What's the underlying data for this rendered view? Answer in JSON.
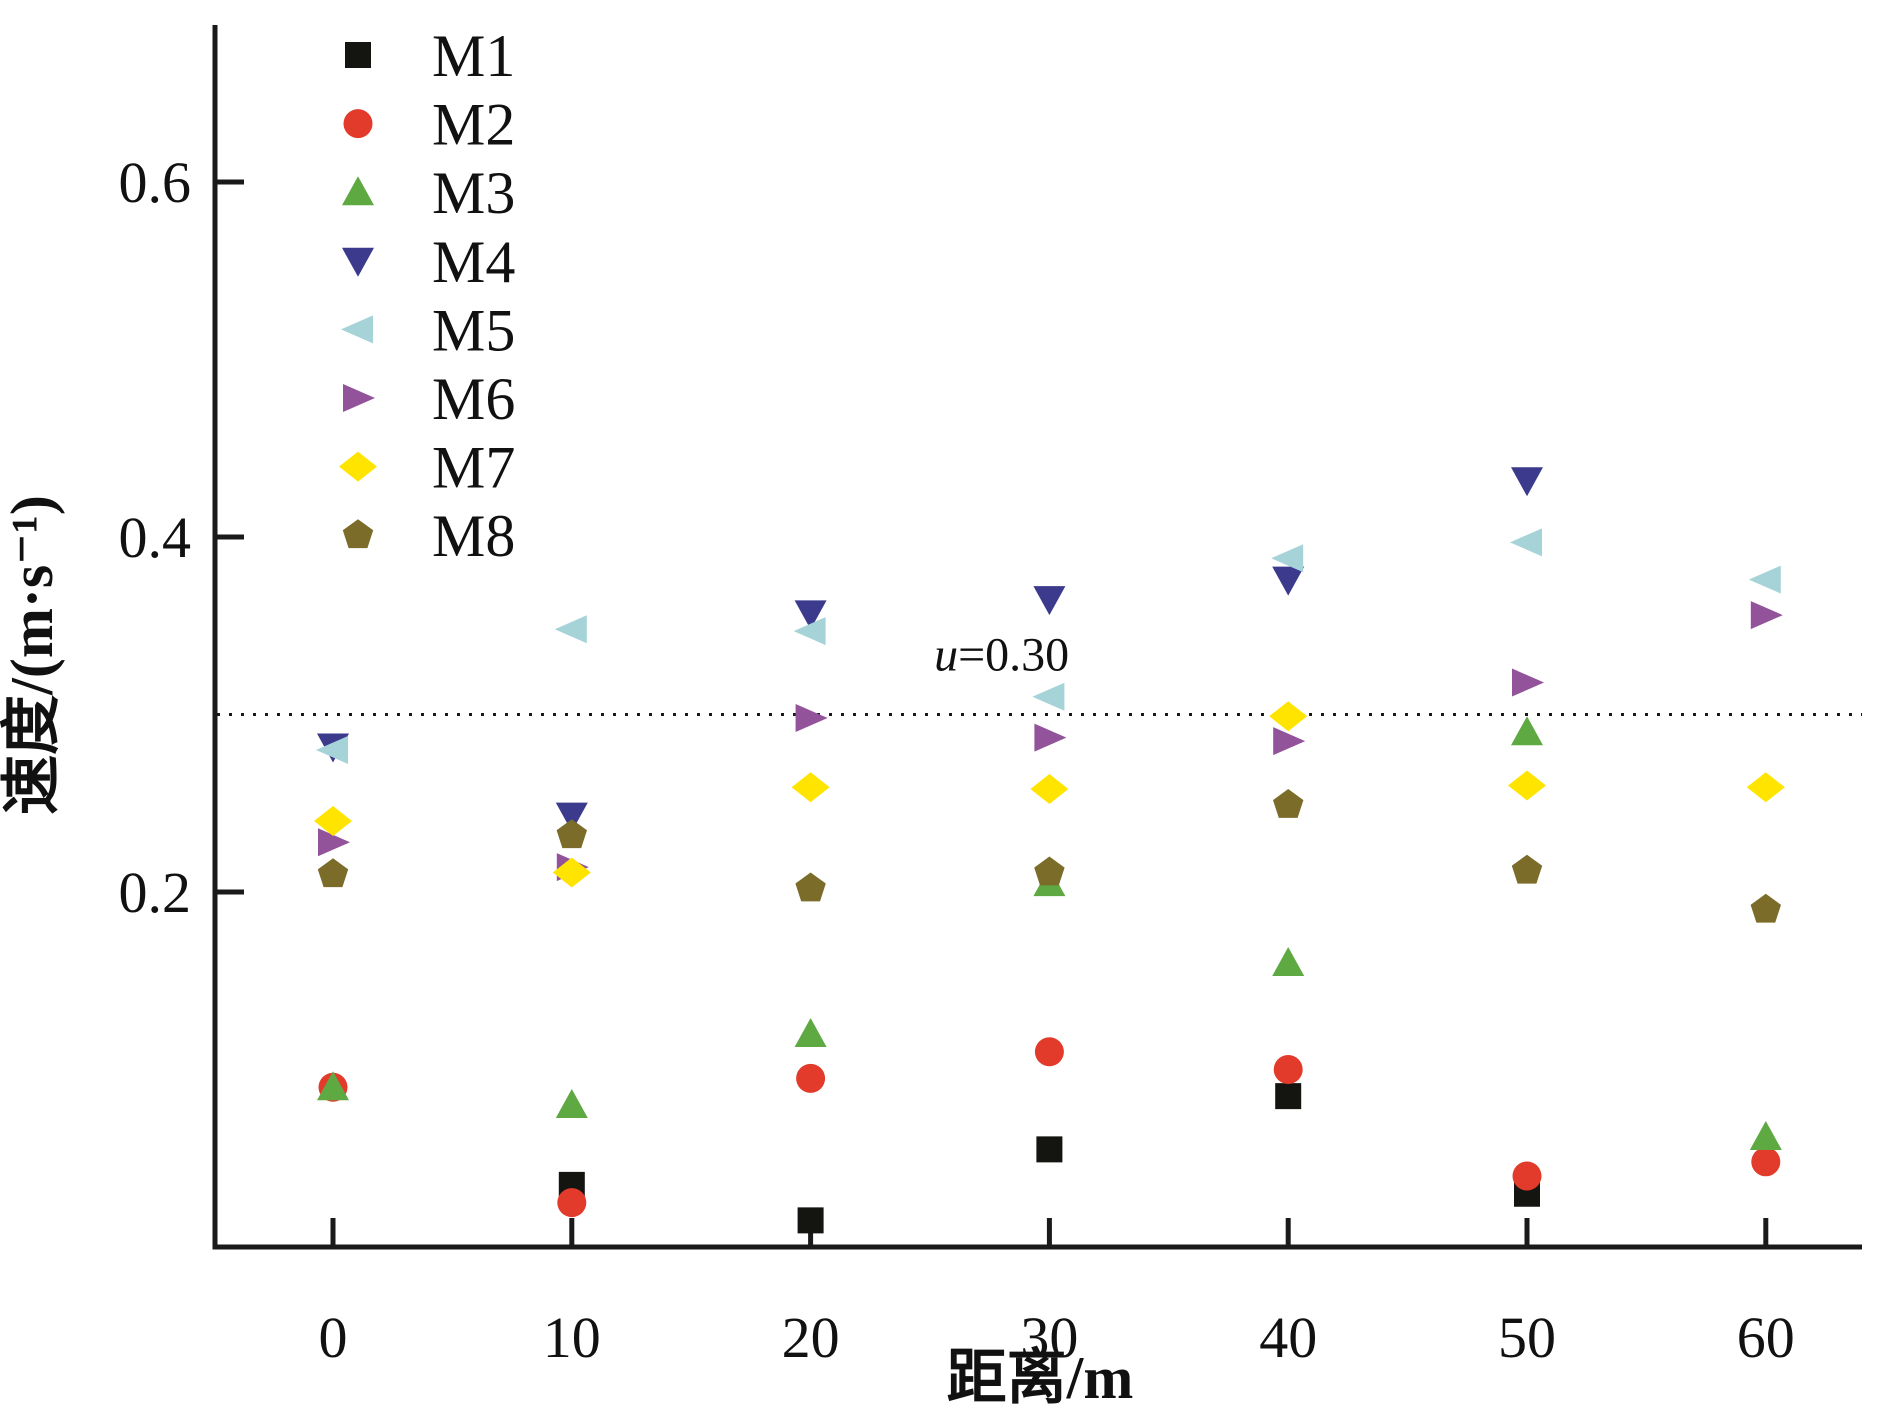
{
  "chart_data": {
    "type": "scatter",
    "title": "",
    "xlabel": "距离/m",
    "ylabel": "速度/(m·s⁻¹)",
    "x_ticks": [
      0,
      10,
      20,
      30,
      40,
      50,
      60
    ],
    "y_ticks": [
      0.2,
      0.4,
      0.6
    ],
    "y_tick_labels": [
      "0.2",
      "0.4",
      "0.6"
    ],
    "xlim": [
      -5,
      64
    ],
    "ylim": [
      0,
      0.69
    ],
    "grid": false,
    "legend_position": "upper-left-inside",
    "reference_line": {
      "value": 0.3,
      "label_var": "u",
      "label_rest": "=0.30",
      "label_full": "u=0.30",
      "label_anchor_x": 28,
      "label_anchor_y": 0.335,
      "color": "#1a1a1a"
    },
    "axis_color": "#1a1a1a",
    "series": [
      {
        "name": "M1",
        "marker": "square",
        "color": "#141411",
        "points": [
          {
            "x": 10,
            "y": 0.035
          },
          {
            "x": 20,
            "y": 0.015
          },
          {
            "x": 30,
            "y": 0.055
          },
          {
            "x": 40,
            "y": 0.085
          },
          {
            "x": 50,
            "y": 0.03
          }
        ]
      },
      {
        "name": "M2",
        "marker": "circle",
        "color": "#e23b2b",
        "points": [
          {
            "x": 0,
            "y": 0.09
          },
          {
            "x": 10,
            "y": 0.025
          },
          {
            "x": 20,
            "y": 0.095
          },
          {
            "x": 30,
            "y": 0.11
          },
          {
            "x": 40,
            "y": 0.1
          },
          {
            "x": 50,
            "y": 0.04
          },
          {
            "x": 60,
            "y": 0.048
          }
        ]
      },
      {
        "name": "M3",
        "marker": "triangle-up",
        "color": "#5fa943",
        "points": [
          {
            "x": 0,
            "y": 0.09
          },
          {
            "x": 10,
            "y": 0.08
          },
          {
            "x": 20,
            "y": 0.12
          },
          {
            "x": 30,
            "y": 0.205
          },
          {
            "x": 40,
            "y": 0.16
          },
          {
            "x": 50,
            "y": 0.29
          },
          {
            "x": 60,
            "y": 0.062
          }
        ]
      },
      {
        "name": "M4",
        "marker": "triangle-down",
        "color": "#3b3a8d",
        "points": [
          {
            "x": 0,
            "y": 0.282
          },
          {
            "x": 10,
            "y": 0.243
          },
          {
            "x": 20,
            "y": 0.357
          },
          {
            "x": 30,
            "y": 0.365
          },
          {
            "x": 40,
            "y": 0.376
          },
          {
            "x": 50,
            "y": 0.432
          }
        ]
      },
      {
        "name": "M5",
        "marker": "triangle-left",
        "color": "#a5d3d8",
        "points": [
          {
            "x": 0,
            "y": 0.28
          },
          {
            "x": 10,
            "y": 0.348
          },
          {
            "x": 20,
            "y": 0.347
          },
          {
            "x": 30,
            "y": 0.31
          },
          {
            "x": 40,
            "y": 0.388
          },
          {
            "x": 50,
            "y": 0.397
          },
          {
            "x": 60,
            "y": 0.376
          }
        ]
      },
      {
        "name": "M6",
        "marker": "triangle-right",
        "color": "#92539b",
        "points": [
          {
            "x": 0,
            "y": 0.228
          },
          {
            "x": 10,
            "y": 0.214
          },
          {
            "x": 20,
            "y": 0.298
          },
          {
            "x": 30,
            "y": 0.287
          },
          {
            "x": 40,
            "y": 0.285
          },
          {
            "x": 50,
            "y": 0.318
          },
          {
            "x": 60,
            "y": 0.356
          }
        ]
      },
      {
        "name": "M7",
        "marker": "diamond",
        "color": "#ffe400",
        "points": [
          {
            "x": 0,
            "y": 0.24
          },
          {
            "x": 10,
            "y": 0.211
          },
          {
            "x": 20,
            "y": 0.259
          },
          {
            "x": 30,
            "y": 0.258
          },
          {
            "x": 40,
            "y": 0.299
          },
          {
            "x": 50,
            "y": 0.26
          },
          {
            "x": 60,
            "y": 0.259
          }
        ]
      },
      {
        "name": "M8",
        "marker": "pentagon",
        "color": "#7b6c29",
        "points": [
          {
            "x": 0,
            "y": 0.21
          },
          {
            "x": 10,
            "y": 0.232
          },
          {
            "x": 20,
            "y": 0.202
          },
          {
            "x": 30,
            "y": 0.211
          },
          {
            "x": 40,
            "y": 0.249
          },
          {
            "x": 50,
            "y": 0.212
          },
          {
            "x": 60,
            "y": 0.19
          }
        ]
      }
    ]
  }
}
